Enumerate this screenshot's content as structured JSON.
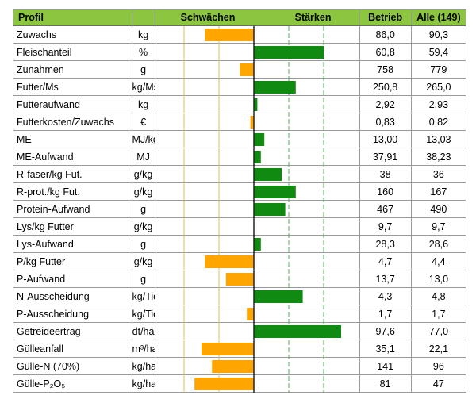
{
  "header": {
    "profil": "Profil",
    "schwaechen": "Schwächen",
    "staerken": "Stärken",
    "betrieb": "Betrieb",
    "alle": "Alle (149)"
  },
  "colors": {
    "header_bg": "#8cc640",
    "weak_bar": "#ffa500",
    "strong_bar": "#108a10",
    "weak_grid": "#d6c25a",
    "strong_grid": "#50b050",
    "center_line": "#222222"
  },
  "rows": [
    {
      "label": "Zuwachs",
      "unit": "kg",
      "betrieb": "86,0",
      "alle": "90,3"
    },
    {
      "label": "Fleischanteil",
      "unit": "%",
      "betrieb": "60,8",
      "alle": "59,4"
    },
    {
      "label": "Zunahmen",
      "unit": "g",
      "betrieb": "758",
      "alle": "779"
    },
    {
      "label": "Futter/Ms",
      "unit": "kg/Ms",
      "betrieb": "250,8",
      "alle": "265,0"
    },
    {
      "label": "Futteraufwand",
      "unit": "kg",
      "betrieb": "2,92",
      "alle": "2,93"
    },
    {
      "label": "Futterkosten/Zuwachs",
      "unit": "€",
      "betrieb": "0,83",
      "alle": "0,82"
    },
    {
      "label": "ME",
      "unit": "MJ/kg",
      "betrieb": "13,00",
      "alle": "13,03"
    },
    {
      "label": "ME-Aufwand",
      "unit": "MJ",
      "betrieb": "37,91",
      "alle": "38,23"
    },
    {
      "label": "R-faser/kg Fut.",
      "unit": "g/kg",
      "betrieb": "38",
      "alle": "36"
    },
    {
      "label": "R-prot./kg Fut.",
      "unit": "g/kg",
      "betrieb": "160",
      "alle": "167"
    },
    {
      "label": "Protein-Aufwand",
      "unit": "g",
      "betrieb": "467",
      "alle": "490"
    },
    {
      "label": "Lys/kg Futter",
      "unit": "g/kg",
      "betrieb": "9,7",
      "alle": "9,7"
    },
    {
      "label": "Lys-Aufwand",
      "unit": "g",
      "betrieb": "28,3",
      "alle": "28,6"
    },
    {
      "label": "P/kg Futter",
      "unit": "g/kg",
      "betrieb": "4,7",
      "alle": "4,4"
    },
    {
      "label": "P-Aufwand",
      "unit": "g",
      "betrieb": "13,7",
      "alle": "13,0"
    },
    {
      "label": "N-Ausscheidung",
      "unit": "kg/Tier",
      "betrieb": "4,3",
      "alle": "4,8"
    },
    {
      "label": "P-Ausscheidung",
      "unit": "kg/Tier",
      "betrieb": "1,7",
      "alle": "1,7"
    },
    {
      "label": "Getreideertrag",
      "unit": "dt/ha",
      "betrieb": "97,6",
      "alle": "77,0"
    },
    {
      "label": "Gülleanfall",
      "unit": "m³/ha",
      "betrieb": "35,1",
      "alle": "22,1"
    },
    {
      "label": "Gülle-N (70%)",
      "unit": "kg/ha",
      "betrieb": "141",
      "alle": "96"
    },
    {
      "label": "Gülle-P₂O₅",
      "unit": "kg/ha",
      "betrieb": "81",
      "alle": "47"
    }
  ],
  "chart_data": {
    "type": "bar",
    "orientation": "horizontal-diverging",
    "scale_note": "bar length relative to scale where gridlines at ±1, ±2, ±3, ±4 units; negative = Schwächen, positive = Stärken",
    "xlim": [
      -4.2,
      4.2
    ],
    "categories": [
      "Zuwachs",
      "Fleischanteil",
      "Zunahmen",
      "Futter/Ms",
      "Futteraufwand",
      "Futterkosten/Zuwachs",
      "ME",
      "ME-Aufwand",
      "R-faser/kg Fut.",
      "R-prot./kg Fut.",
      "Protein-Aufwand",
      "Lys/kg Futter",
      "Lys-Aufwand",
      "P/kg Futter",
      "P-Aufwand",
      "N-Ausscheidung",
      "P-Ausscheidung",
      "Getreideertrag",
      "Gülleanfall",
      "Gülle-N (70%)",
      "Gülle-P₂O₅"
    ],
    "values": [
      -1.4,
      2.0,
      -0.4,
      1.2,
      0.1,
      -0.1,
      0.3,
      0.2,
      0.8,
      1.2,
      0.9,
      0.0,
      0.2,
      -1.4,
      -0.8,
      1.4,
      -0.2,
      2.5,
      -1.5,
      -1.2,
      -1.7
    ]
  }
}
